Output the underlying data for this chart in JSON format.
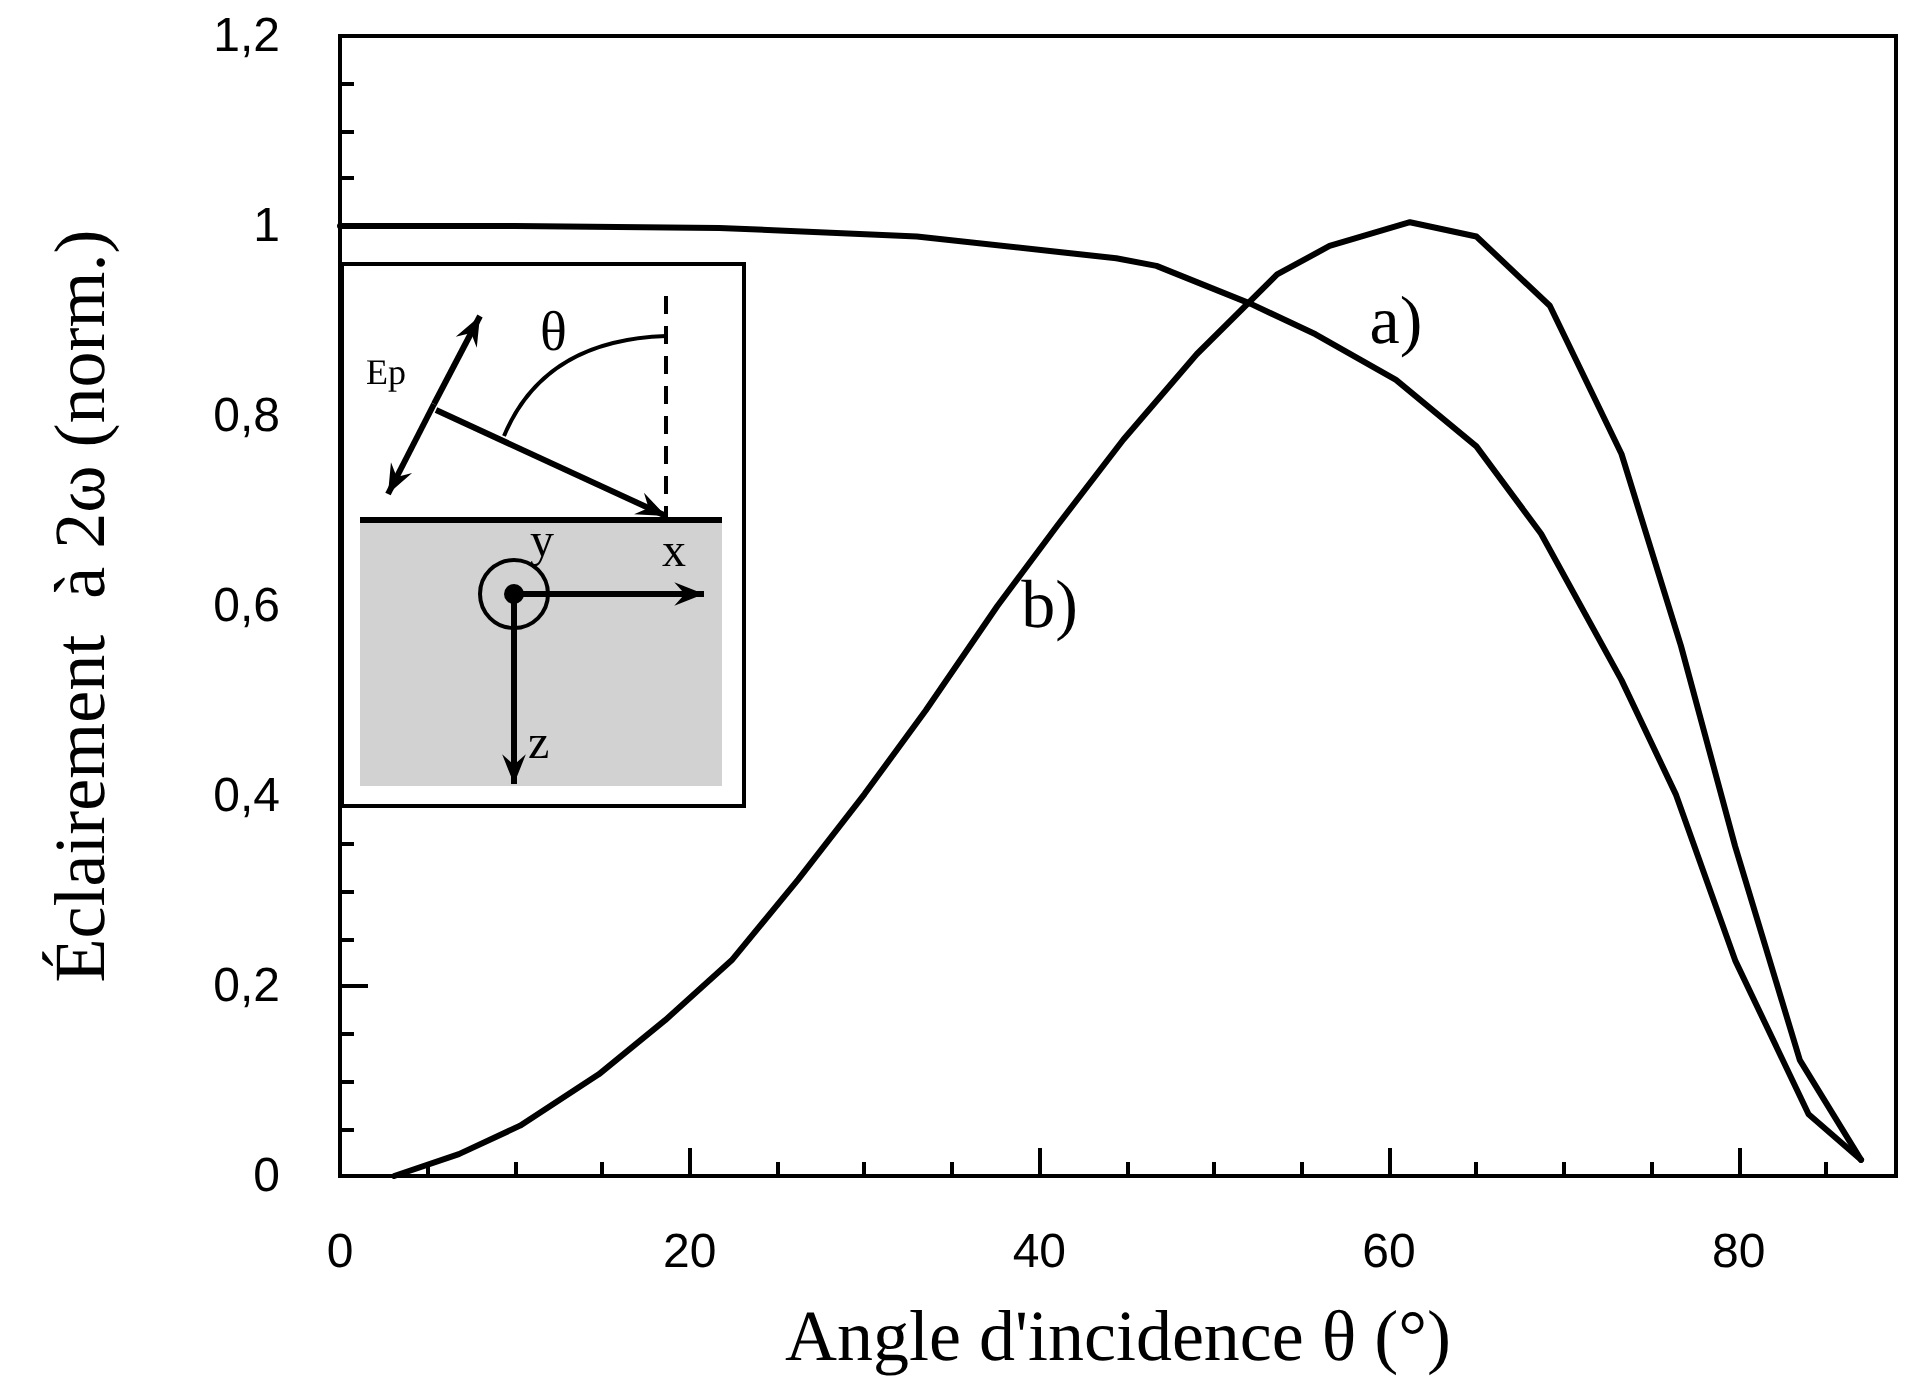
{
  "chart_data": {
    "type": "line",
    "xlabel": "Angle d'incidence θ (°)",
    "ylabel": "Éclairement  à 2ω (norm.)",
    "xlim": [
      0,
      89
    ],
    "xticks": [
      0,
      20,
      40,
      60,
      80
    ],
    "ylim": [
      0,
      1.2
    ],
    "yticks": [
      0,
      {
        "value": 0.2,
        "label": "0,2"
      },
      {
        "value": 0.4,
        "label": "0,4"
      },
      {
        "value": 0.6,
        "label": "0,6"
      },
      {
        "value": 0.8,
        "label": "0,8"
      },
      1,
      {
        "value": 1.2,
        "label": "1,2"
      }
    ],
    "grid": false,
    "legend": false,
    "marker": "none",
    "line_style": "solid",
    "annotations": [
      "Ep",
      "θ",
      "x",
      "y",
      "z"
    ],
    "series": [
      {
        "name": "a)",
        "color": "#000000",
        "x": [
          0,
          10,
          21.7,
          33,
          44.4,
          46.7,
          52.1,
          55.8,
          60.4,
          65.0,
          68.7,
          73.3,
          76.4,
          79.8,
          84.0,
          87.0
        ],
        "values": [
          1.0,
          1.0,
          0.998,
          0.989,
          0.966,
          0.958,
          0.918,
          0.886,
          0.838,
          0.768,
          0.676,
          0.522,
          0.402,
          0.227,
          0.065,
          0.017
        ]
      },
      {
        "name": "b)",
        "color": "#000000",
        "x": [
          3.1,
          6.8,
          10.3,
          14.8,
          18.6,
          22.4,
          26.2,
          30.0,
          33.5,
          37.6,
          41.0,
          44.8,
          49.0,
          53.6,
          56.6,
          61.2,
          65.0,
          69.2,
          73.3,
          76.7,
          79.8,
          83.5,
          87.0
        ],
        "values": [
          0,
          0.023,
          0.053,
          0.107,
          0.164,
          0.227,
          0.312,
          0.402,
          0.49,
          0.6,
          0.684,
          0.775,
          0.865,
          0.949,
          0.979,
          1.004,
          0.989,
          0.916,
          0.76,
          0.558,
          0.347,
          0.122,
          0.017
        ]
      }
    ]
  }
}
